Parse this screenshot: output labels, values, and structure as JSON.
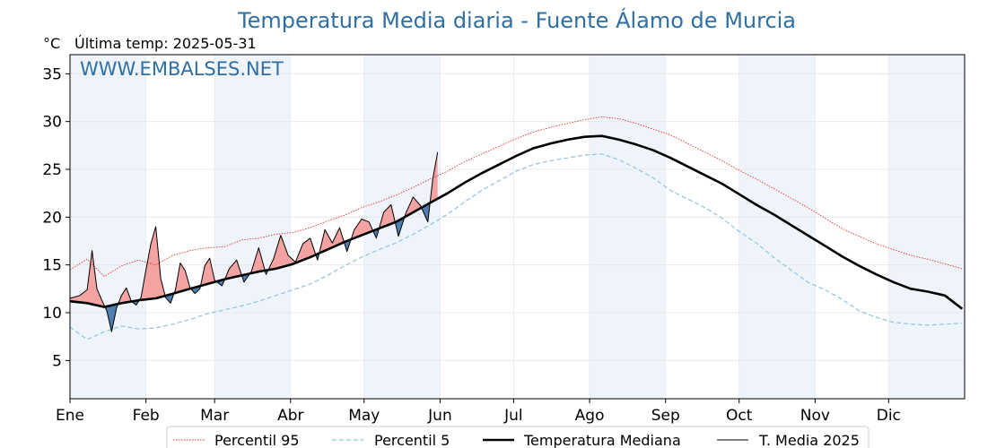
{
  "chart_data": {
    "type": "line",
    "title": "Temperatura Media diaria - Fuente Álamo de Murcia",
    "unit_label": "°C",
    "last_temp_label": "Última temp: 2025-05-31",
    "watermark": "WWW.EMBALSES.NET",
    "ylim": [
      1,
      37
    ],
    "yticks": [
      5,
      10,
      15,
      20,
      25,
      30,
      35
    ],
    "grid": true,
    "month_labels": [
      "Ene",
      "Feb",
      "Mar",
      "Abr",
      "May",
      "Jun",
      "Jul",
      "Ago",
      "Sep",
      "Oct",
      "Nov",
      "Dic"
    ],
    "month_start_days": [
      1,
      32,
      60,
      91,
      121,
      152,
      182,
      213,
      244,
      274,
      305,
      335
    ],
    "shaded_months": [
      "Ene",
      "Mar",
      "May",
      "Ago",
      "Oct",
      "Dic"
    ],
    "legend_position": "bottom-center",
    "colors": {
      "p95": "#e8312a",
      "p5": "#8ec4da",
      "median": "#000000",
      "current": "#000000",
      "above": "#f4a3a3",
      "below": "#4d7fb0",
      "shade": "#eef4fa"
    },
    "series": [
      {
        "name": "Percentil 95",
        "style": "dotted",
        "x": [
          1,
          8,
          15,
          22,
          29,
          36,
          43,
          50,
          57,
          64,
          71,
          78,
          85,
          92,
          99,
          106,
          113,
          120,
          127,
          134,
          141,
          148,
          155,
          162,
          169,
          176,
          183,
          190,
          197,
          204,
          211,
          218,
          225,
          232,
          239,
          246,
          253,
          260,
          267,
          274,
          281,
          288,
          295,
          302,
          309,
          316,
          323,
          330,
          337,
          344,
          351,
          358,
          365
        ],
        "values": [
          14.5,
          15.6,
          13.8,
          14.9,
          15.5,
          15.0,
          16.0,
          16.5,
          16.8,
          16.9,
          17.6,
          17.8,
          18.2,
          18.4,
          18.9,
          19.6,
          20.2,
          21.0,
          21.6,
          22.3,
          23.1,
          24.0,
          24.8,
          25.8,
          26.6,
          27.4,
          28.2,
          28.9,
          29.4,
          29.8,
          30.2,
          30.5,
          30.3,
          29.8,
          29.2,
          28.6,
          27.7,
          26.8,
          25.9,
          24.9,
          24.0,
          23.0,
          22.0,
          21.0,
          19.9,
          18.8,
          18.0,
          17.2,
          16.6,
          16.0,
          15.6,
          15.1,
          14.6
        ]
      },
      {
        "name": "Percentil 5",
        "style": "dashed",
        "x": [
          1,
          8,
          15,
          22,
          29,
          36,
          43,
          50,
          57,
          64,
          71,
          78,
          85,
          92,
          99,
          106,
          113,
          120,
          127,
          134,
          141,
          148,
          155,
          162,
          169,
          176,
          183,
          190,
          197,
          204,
          211,
          218,
          225,
          232,
          239,
          246,
          253,
          260,
          267,
          274,
          281,
          288,
          295,
          302,
          309,
          316,
          323,
          330,
          337,
          344,
          351,
          358,
          365
        ],
        "values": [
          8.5,
          7.2,
          8.0,
          8.6,
          8.3,
          8.4,
          8.8,
          9.3,
          9.9,
          10.3,
          10.7,
          11.2,
          11.8,
          12.4,
          13.0,
          13.9,
          14.9,
          15.8,
          16.6,
          17.3,
          18.2,
          19.2,
          20.3,
          21.6,
          22.8,
          23.8,
          24.8,
          25.5,
          25.9,
          26.2,
          26.5,
          26.6,
          26.0,
          25.1,
          24.1,
          22.8,
          21.9,
          21.0,
          19.9,
          18.5,
          17.3,
          15.8,
          14.5,
          13.2,
          12.4,
          11.4,
          10.2,
          9.5,
          9.0,
          8.8,
          8.7,
          8.8,
          8.9
        ]
      },
      {
        "name": "Temperatura Mediana",
        "style": "solid-thick",
        "x": [
          1,
          8,
          15,
          22,
          29,
          36,
          43,
          50,
          57,
          64,
          71,
          78,
          85,
          92,
          99,
          106,
          113,
          120,
          127,
          134,
          141,
          148,
          155,
          162,
          169,
          176,
          183,
          190,
          197,
          204,
          211,
          218,
          225,
          232,
          239,
          246,
          253,
          260,
          267,
          274,
          281,
          288,
          295,
          302,
          309,
          316,
          323,
          330,
          337,
          344,
          351,
          358,
          365
        ],
        "values": [
          11.2,
          11.0,
          10.6,
          11.0,
          11.3,
          11.5,
          12.0,
          12.5,
          13.0,
          13.5,
          13.9,
          14.3,
          14.6,
          15.1,
          15.8,
          16.6,
          17.4,
          18.1,
          18.8,
          19.5,
          20.5,
          21.5,
          22.5,
          23.6,
          24.6,
          25.5,
          26.4,
          27.2,
          27.7,
          28.1,
          28.4,
          28.5,
          28.1,
          27.6,
          27.0,
          26.2,
          25.3,
          24.4,
          23.5,
          22.4,
          21.3,
          20.3,
          19.2,
          18.1,
          17.0,
          15.9,
          14.9,
          14.0,
          13.2,
          12.5,
          12.2,
          11.8,
          10.4
        ]
      },
      {
        "name": "T. Media 2025",
        "style": "solid-thin",
        "x": [
          1,
          5,
          8,
          10,
          12,
          14,
          16,
          18,
          20,
          22,
          24,
          26,
          28,
          30,
          32,
          34,
          36,
          38,
          40,
          42,
          44,
          46,
          48,
          50,
          52,
          54,
          56,
          58,
          60,
          63,
          66,
          69,
          72,
          75,
          78,
          81,
          84,
          87,
          90,
          93,
          96,
          99,
          102,
          105,
          108,
          111,
          114,
          117,
          120,
          123,
          126,
          129,
          132,
          135,
          138,
          141,
          144,
          147,
          149,
          151
        ],
        "values": [
          11.5,
          11.8,
          12.4,
          16.5,
          12.5,
          11.3,
          10.2,
          8.0,
          10.5,
          11.8,
          12.6,
          11.2,
          10.8,
          11.6,
          14.5,
          17.2,
          19.0,
          13.6,
          11.6,
          11.0,
          12.4,
          15.2,
          14.4,
          12.6,
          12.0,
          12.5,
          14.9,
          15.7,
          13.4,
          12.8,
          14.6,
          15.5,
          13.2,
          14.3,
          16.8,
          14.0,
          15.6,
          18.1,
          16.0,
          15.3,
          17.2,
          17.8,
          15.5,
          18.7,
          17.3,
          18.9,
          16.4,
          18.7,
          19.8,
          19.5,
          17.8,
          20.5,
          21.3,
          18.0,
          20.4,
          22.1,
          21.2,
          19.5,
          24.0,
          26.8
        ]
      }
    ]
  }
}
